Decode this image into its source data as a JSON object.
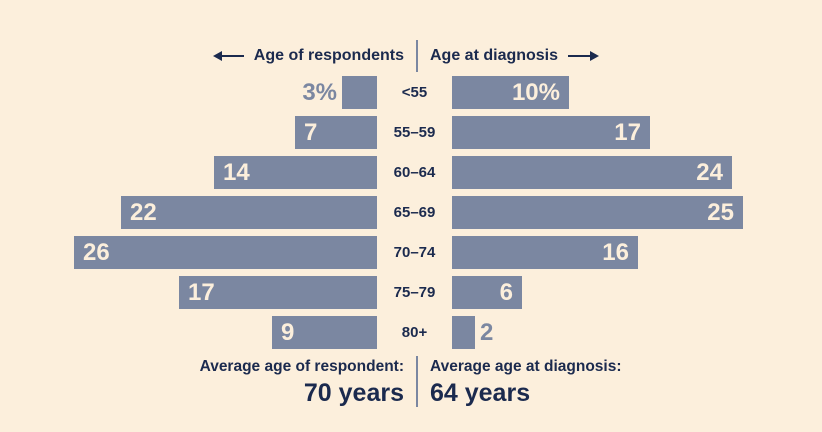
{
  "colors": {
    "background": "#FCEFDC",
    "bar": "#7B87A1",
    "navy": "#1B2A4E",
    "divider": "#7B87A1",
    "bar_label_inside": "#FCEFDC"
  },
  "header": {
    "left_label": "Age of respondents",
    "right_label": "Age at diagnosis"
  },
  "chart_data": {
    "type": "bar",
    "subtype": "population-pyramid",
    "categories": [
      "<55",
      "55–59",
      "60–64",
      "65–69",
      "70–74",
      "75–79",
      "80+"
    ],
    "series": [
      {
        "name": "Age of respondents",
        "side": "left",
        "values": [
          3,
          7,
          14,
          22,
          26,
          17,
          9
        ],
        "labels": [
          "3%",
          "7",
          "14",
          "22",
          "26",
          "17",
          "9"
        ]
      },
      {
        "name": "Age at diagnosis",
        "side": "right",
        "values": [
          10,
          17,
          24,
          25,
          16,
          6,
          2
        ],
        "labels": [
          "10%",
          "17",
          "24",
          "25",
          "16",
          "6",
          "2"
        ]
      }
    ],
    "unit": "percent",
    "xlim": [
      0,
      26
    ],
    "grid": false,
    "legend_position": "top"
  },
  "footer": {
    "left_title": "Average age of respondent:",
    "left_value": "70 years",
    "right_title": "Average age at diagnosis:",
    "right_value": "64 years"
  }
}
